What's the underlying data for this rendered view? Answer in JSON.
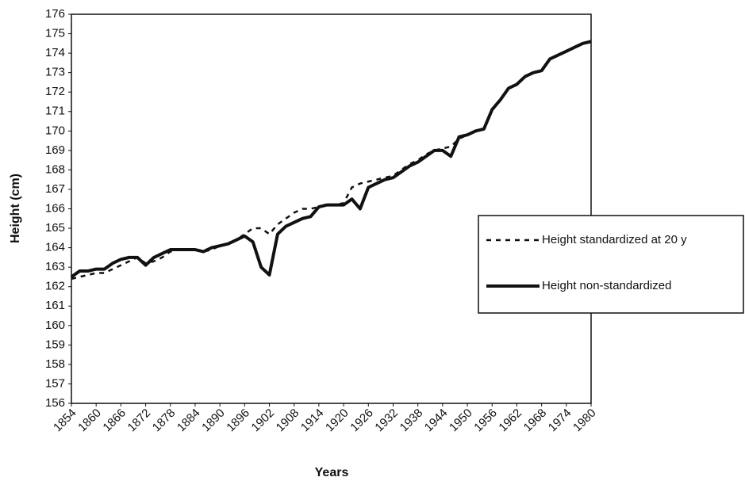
{
  "chart_data": {
    "type": "line",
    "y_label": "Height (cm)",
    "x_label": "Years",
    "x": [
      1854,
      1856,
      1858,
      1860,
      1862,
      1864,
      1866,
      1868,
      1870,
      1872,
      1874,
      1876,
      1878,
      1880,
      1882,
      1884,
      1886,
      1888,
      1890,
      1892,
      1894,
      1896,
      1898,
      1900,
      1902,
      1904,
      1906,
      1908,
      1910,
      1912,
      1914,
      1916,
      1918,
      1920,
      1922,
      1924,
      1926,
      1928,
      1930,
      1932,
      1934,
      1936,
      1938,
      1940,
      1942,
      1944,
      1946,
      1948,
      1950,
      1952,
      1954,
      1956,
      1958,
      1960,
      1962,
      1964,
      1966,
      1968,
      1970,
      1972,
      1974,
      1976,
      1978,
      1980
    ],
    "series": [
      {
        "name": "Height standardized at 20 y",
        "color": "#111111",
        "line_style": "dashed",
        "values": [
          162.4,
          162.5,
          162.6,
          162.7,
          162.7,
          162.9,
          163.1,
          163.3,
          163.5,
          163.2,
          163.3,
          163.5,
          163.8,
          163.9,
          163.9,
          163.9,
          163.8,
          163.9,
          164.1,
          164.2,
          164.4,
          164.7,
          165.0,
          165.0,
          164.7,
          165.2,
          165.5,
          165.8,
          166.0,
          166.0,
          166.1,
          166.2,
          166.2,
          166.3,
          167.1,
          167.3,
          167.4,
          167.5,
          167.6,
          167.7,
          168.0,
          168.3,
          168.5,
          168.8,
          169.0,
          169.1,
          169.2,
          169.6,
          169.8,
          170.0,
          170.1,
          171.1,
          171.6,
          172.2,
          172.4,
          172.8,
          173.0,
          173.1,
          173.7,
          173.9,
          174.1,
          174.3,
          174.5,
          174.6
        ]
      },
      {
        "name": "Height non-standardized",
        "color": "#111111",
        "line_style": "solid",
        "values": [
          162.5,
          162.8,
          162.8,
          162.9,
          162.9,
          163.2,
          163.4,
          163.5,
          163.5,
          163.1,
          163.5,
          163.7,
          163.9,
          163.9,
          163.9,
          163.9,
          163.8,
          164.0,
          164.1,
          164.2,
          164.4,
          164.6,
          164.3,
          163.0,
          162.6,
          164.7,
          165.1,
          165.3,
          165.5,
          165.6,
          166.1,
          166.2,
          166.2,
          166.2,
          166.5,
          166.0,
          167.1,
          167.3,
          167.5,
          167.6,
          167.9,
          168.2,
          168.4,
          168.7,
          169.0,
          169.0,
          168.7,
          169.7,
          169.8,
          170.0,
          170.1,
          171.1,
          171.6,
          172.2,
          172.4,
          172.8,
          173.0,
          173.1,
          173.7,
          173.9,
          174.1,
          174.3,
          174.5,
          174.6
        ]
      }
    ],
    "xlim": [
      1854,
      1980
    ],
    "xticks": [
      1854,
      1860,
      1866,
      1872,
      1878,
      1884,
      1890,
      1896,
      1902,
      1908,
      1914,
      1920,
      1926,
      1932,
      1938,
      1944,
      1950,
      1956,
      1962,
      1968,
      1974,
      1980
    ],
    "ylim": [
      156,
      176
    ],
    "yticks": [
      156,
      157,
      158,
      159,
      160,
      161,
      162,
      163,
      164,
      165,
      166,
      167,
      168,
      169,
      170,
      171,
      172,
      173,
      174,
      175,
      176
    ],
    "grid": false
  }
}
